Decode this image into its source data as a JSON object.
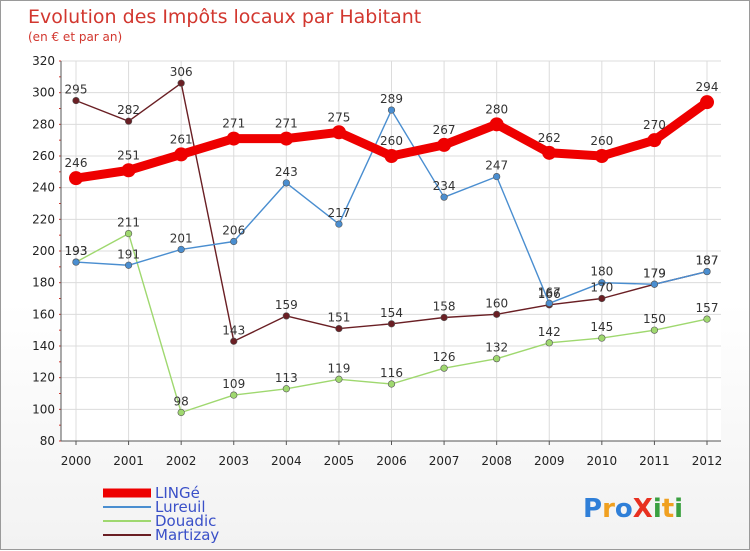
{
  "chart_data": {
    "type": "line",
    "title": "Evolution des Impôts locaux par Habitant",
    "subtitle": "(en € et par an)",
    "x": [
      "2000",
      "2001",
      "2002",
      "2003",
      "2004",
      "2005",
      "2006",
      "2007",
      "2008",
      "2009",
      "2010",
      "2011",
      "2012"
    ],
    "ylim": [
      80,
      320
    ],
    "yticks": [
      80,
      100,
      120,
      140,
      160,
      180,
      200,
      220,
      240,
      260,
      280,
      300,
      320
    ],
    "grid": true,
    "legend_position": "bottom-left",
    "series": [
      {
        "name": "LINGé",
        "color": "#ee0000",
        "values": [
          246,
          251,
          261,
          271,
          271,
          275,
          260,
          267,
          280,
          262,
          260,
          270,
          294
        ]
      },
      {
        "name": "Lureuil",
        "color": "#4a8ed0",
        "values": [
          193,
          191,
          201,
          206,
          243,
          217,
          289,
          234,
          247,
          167,
          180,
          179,
          187
        ]
      },
      {
        "name": "Douadic",
        "color": "#9fd86f",
        "values": [
          193,
          211,
          98,
          109,
          113,
          119,
          116,
          126,
          132,
          142,
          145,
          150,
          157
        ]
      },
      {
        "name": "Martizay",
        "color": "#6a1f24",
        "values": [
          295,
          282,
          306,
          143,
          159,
          151,
          154,
          158,
          160,
          166,
          170,
          179,
          187
        ]
      }
    ]
  },
  "logo": {
    "text": "ProXiti"
  }
}
